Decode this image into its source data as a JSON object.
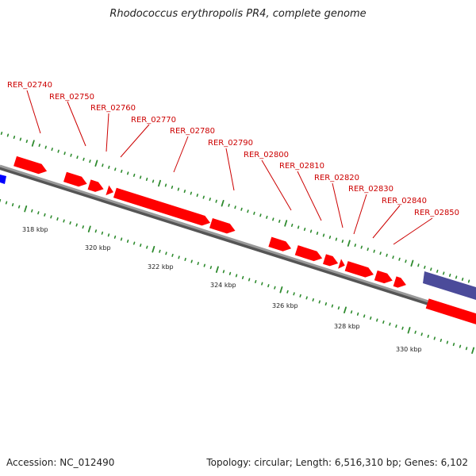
{
  "title": "Rhodococcus erythropolis PR4, complete genome",
  "footer": {
    "accession": "Accession: NC_012490",
    "summary": "Topology: circular; Length: 6,516,310 bp; Genes: 6,102"
  },
  "colors": {
    "gene_fwd": "#ff0000",
    "gene_label": "#cc0000",
    "backbone": "#808080",
    "tick": "#2e8b2e",
    "blue_feature": "#0000ff",
    "purple_feature": "#4b4b9a"
  },
  "gene_labels": [
    "RER_02740",
    "RER_02750",
    "RER_02760",
    "RER_02770",
    "RER_02780",
    "RER_02790",
    "RER_02800",
    "RER_02810",
    "RER_02820",
    "RER_02830",
    "RER_02840",
    "RER_02850"
  ],
  "scale_labels": [
    "318 kbp",
    "320 kbp",
    "322 kbp",
    "324 kbp",
    "326 kbp",
    "328 kbp",
    "330 kbp"
  ]
}
